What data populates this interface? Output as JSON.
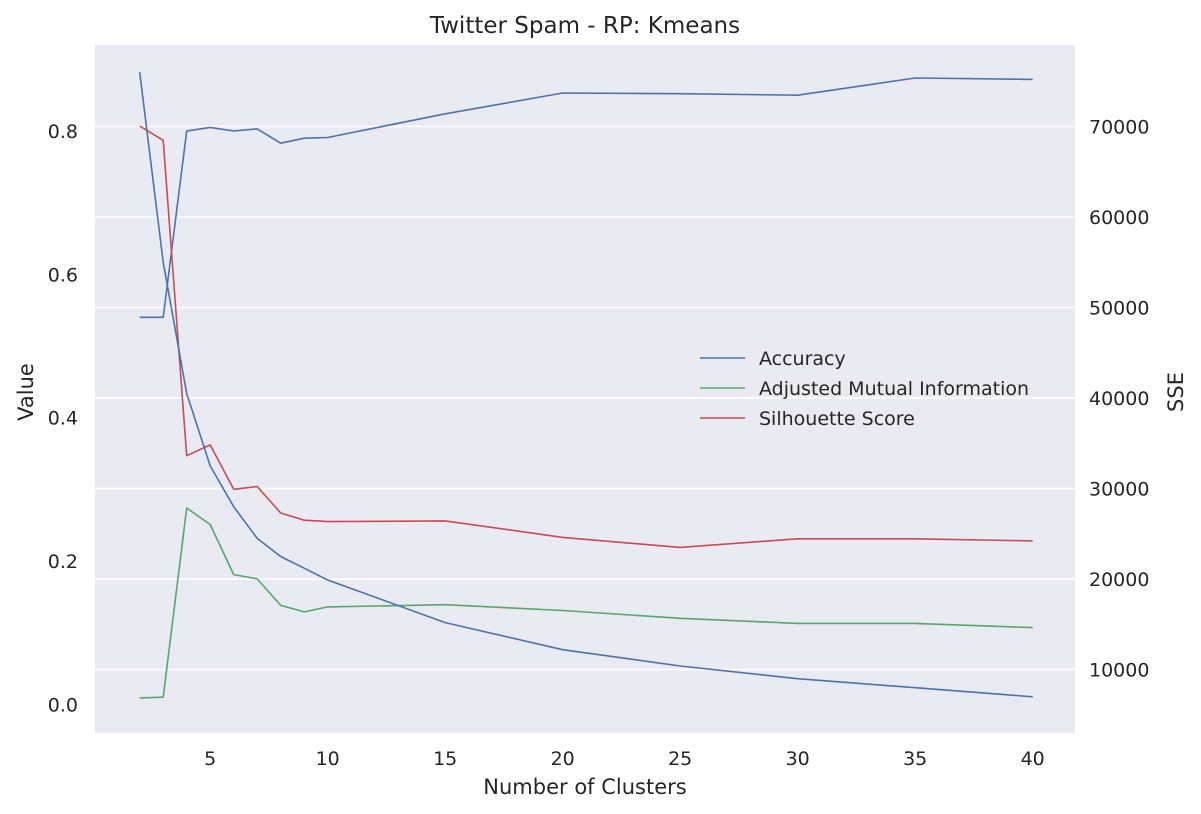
{
  "chart_data": {
    "type": "line",
    "title": "Twitter Spam - RP: Kmeans",
    "xlabel": "Number of Clusters",
    "ylabel": "Value",
    "y2label": "SSE",
    "xlim": [
      0.1,
      41.8
    ],
    "ylim": [
      -0.04,
      0.92
    ],
    "y2lim": [
      3000,
      79000
    ],
    "xticks": [
      5,
      10,
      15,
      20,
      25,
      30,
      35,
      40
    ],
    "yticks": [
      0.0,
      0.2,
      0.4,
      0.6,
      0.8
    ],
    "y2ticks": [
      10000,
      20000,
      30000,
      40000,
      50000,
      60000,
      70000
    ],
    "grid": true,
    "legend_position": "center-right",
    "colors": {
      "accuracy": "#4c72b0",
      "ami": "#55a868",
      "silhouette": "#c44e52",
      "sse": "#4c72b0",
      "background": "#eaeaf2",
      "grid": "#ffffff"
    },
    "x": [
      2,
      3,
      4,
      5,
      6,
      7,
      8,
      9,
      10,
      15,
      20,
      25,
      30,
      35,
      40
    ],
    "series": [
      {
        "name": "Accuracy",
        "axis": "left",
        "values": [
          0.54,
          0.54,
          0.8,
          0.805,
          0.8,
          0.803,
          0.783,
          0.79,
          0.791,
          0.824,
          0.853,
          0.852,
          0.85,
          0.874,
          0.872
        ]
      },
      {
        "name": "Adjusted Mutual Information",
        "axis": "left",
        "values": [
          0.009,
          0.01,
          0.274,
          0.251,
          0.181,
          0.175,
          0.138,
          0.129,
          0.136,
          0.139,
          0.131,
          0.12,
          0.113,
          0.113,
          0.107
        ]
      },
      {
        "name": "Silhouette Score",
        "axis": "left",
        "values": [
          0.807,
          0.787,
          0.347,
          0.362,
          0.3,
          0.304,
          0.267,
          0.257,
          0.255,
          0.256,
          0.233,
          0.219,
          0.231,
          0.231,
          0.228
        ]
      },
      {
        "name": "",
        "axis": "right",
        "values": [
          76000,
          55000,
          40500,
          32500,
          28000,
          24500,
          22500,
          21200,
          19900,
          15200,
          12200,
          10400,
          9000,
          8000,
          7000
        ]
      }
    ]
  }
}
